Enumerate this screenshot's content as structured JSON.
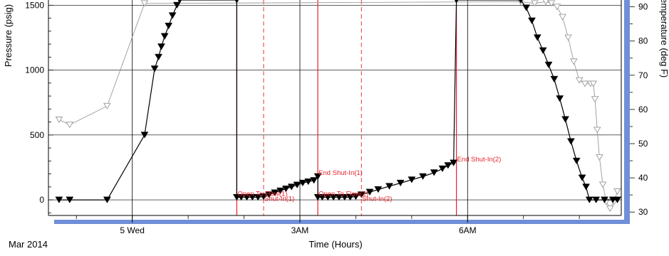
{
  "chart_data": {
    "type": "line",
    "x_axis": {
      "label": "Time (Hours)",
      "ticks": [
        {
          "label": "5 Wed",
          "x": 0.0
        },
        {
          "label": "3AM",
          "x": 3.0
        },
        {
          "label": "6AM",
          "x": 6.0
        }
      ],
      "date_label": "Mar 2014",
      "xlim": [
        -1.5,
        8.75
      ]
    },
    "y_left": {
      "label": "Pressure (psig)",
      "ticks": [
        0,
        500,
        1000,
        1500
      ],
      "ylim": [
        -120,
        1540
      ]
    },
    "y_right": {
      "label": "Temperature (deg F)",
      "ticks": [
        30,
        40,
        50,
        60,
        70,
        80,
        90
      ],
      "ylim": [
        29,
        92
      ]
    },
    "series": [
      {
        "marker": "filled-down-triangle",
        "color": "#000000",
        "points": [
          [
            -1.31,
            0
          ],
          [
            -1.12,
            0
          ],
          [
            -0.45,
            0
          ],
          [
            0.22,
            500
          ],
          [
            0.4,
            1010
          ],
          [
            0.47,
            1100
          ],
          [
            0.52,
            1180
          ],
          [
            0.58,
            1260
          ],
          [
            0.65,
            1340
          ],
          [
            0.72,
            1420
          ],
          [
            0.8,
            1500
          ],
          [
            0.85,
            1540
          ],
          [
            1.87,
            1540
          ],
          [
            1.87,
            20
          ],
          [
            1.95,
            20
          ],
          [
            2.05,
            20
          ],
          [
            2.15,
            20
          ],
          [
            2.25,
            20
          ],
          [
            2.35,
            25
          ],
          [
            2.45,
            40
          ],
          [
            2.55,
            55
          ],
          [
            2.65,
            70
          ],
          [
            2.75,
            85
          ],
          [
            2.85,
            100
          ],
          [
            2.95,
            115
          ],
          [
            3.05,
            130
          ],
          [
            3.15,
            140
          ],
          [
            3.25,
            150
          ],
          [
            3.32,
            180
          ],
          [
            3.32,
            20
          ],
          [
            3.4,
            20
          ],
          [
            3.5,
            20
          ],
          [
            3.6,
            20
          ],
          [
            3.7,
            20
          ],
          [
            3.8,
            20
          ],
          [
            3.9,
            20
          ],
          [
            4.0,
            25
          ],
          [
            4.1,
            40
          ],
          [
            4.25,
            60
          ],
          [
            4.4,
            80
          ],
          [
            4.6,
            105
          ],
          [
            4.8,
            130
          ],
          [
            5.0,
            155
          ],
          [
            5.2,
            180
          ],
          [
            5.4,
            210
          ],
          [
            5.55,
            240
          ],
          [
            5.65,
            265
          ],
          [
            5.75,
            285
          ],
          [
            5.8,
            1540
          ],
          [
            6.95,
            1540
          ],
          [
            7.05,
            1480
          ],
          [
            7.15,
            1380
          ],
          [
            7.25,
            1250
          ],
          [
            7.35,
            1150
          ],
          [
            7.45,
            1040
          ],
          [
            7.55,
            930
          ],
          [
            7.65,
            780
          ],
          [
            7.75,
            620
          ],
          [
            7.85,
            450
          ],
          [
            7.95,
            300
          ],
          [
            8.05,
            170
          ],
          [
            8.12,
            100
          ],
          [
            8.18,
            0
          ],
          [
            8.3,
            0
          ],
          [
            8.45,
            0
          ],
          [
            8.6,
            0
          ],
          [
            8.68,
            0
          ]
        ]
      },
      {
        "marker": "open-down-triangle",
        "color": "#999999",
        "axis": "right",
        "points": [
          [
            -1.31,
            57.0
          ],
          [
            -1.12,
            55.5
          ],
          [
            -0.45,
            61.0
          ],
          [
            0.22,
            91.0
          ],
          [
            6.95,
            91.5
          ],
          [
            7.2,
            91.0
          ],
          [
            7.4,
            91.5
          ],
          [
            7.5,
            91.0
          ],
          [
            7.6,
            90.0
          ],
          [
            7.7,
            87.0
          ],
          [
            7.8,
            81.0
          ],
          [
            7.9,
            74.0
          ],
          [
            8.0,
            68.5
          ],
          [
            8.1,
            67.5
          ],
          [
            8.2,
            67.5
          ],
          [
            8.25,
            67.5
          ],
          [
            8.28,
            63.0
          ],
          [
            8.32,
            54.0
          ],
          [
            8.36,
            46.0
          ],
          [
            8.42,
            38.0
          ],
          [
            8.48,
            33.0
          ],
          [
            8.55,
            31.0
          ],
          [
            8.62,
            33.0
          ],
          [
            8.68,
            36.0
          ]
        ]
      }
    ],
    "annotations": [
      {
        "text": "Open To Flow(1)",
        "x": 1.87,
        "y": 20
      },
      {
        "text": "Shut-In(1)",
        "x": 2.35,
        "y": -20
      },
      {
        "text": "End Shut-In(1)",
        "x": 3.32,
        "y": 180
      },
      {
        "text": "Open To Flow(2)",
        "x": 3.32,
        "y": 20
      },
      {
        "text": "Shut-In(2)",
        "x": 4.1,
        "y": -20
      },
      {
        "text": "End Shut-In(2)",
        "x": 5.8,
        "y": 285
      }
    ],
    "event_lines": [
      {
        "x": 1.87,
        "style": "solid"
      },
      {
        "x": 2.35,
        "style": "dashed"
      },
      {
        "x": 3.32,
        "style": "solid"
      },
      {
        "x": 4.1,
        "style": "dashed"
      },
      {
        "x": 5.8,
        "style": "solid"
      }
    ],
    "colors": {
      "annotation": "#e8212a",
      "right_band": "#6f8fd8",
      "grid": "#000000"
    }
  }
}
